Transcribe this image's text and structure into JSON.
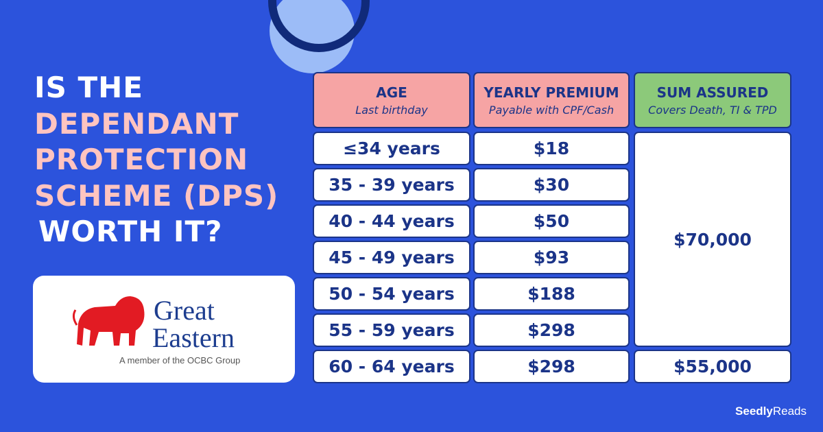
{
  "title": {
    "lines": [
      "IS THE",
      "DEPENDANT",
      "PROTECTION",
      "SCHEME (DPS)",
      "WORTH IT?"
    ]
  },
  "logo": {
    "name_lines": [
      "Great",
      "Eastern"
    ],
    "tagline": "A member of the OCBC Group"
  },
  "table": {
    "headers": [
      {
        "title": "AGE",
        "subtitle": "Last birthday"
      },
      {
        "title": "YEARLY PREMIUM",
        "subtitle": "Payable with CPF/Cash"
      },
      {
        "title": "SUM ASSURED",
        "subtitle": "Covers Death, TI & TPD"
      }
    ],
    "rows": [
      [
        "≤34 years",
        "$18"
      ],
      [
        "35 - 39 years",
        "$30"
      ],
      [
        "40 - 44 years",
        "$50"
      ],
      [
        "45 - 49 years",
        "$93"
      ],
      [
        "50 - 54 years",
        "$188"
      ],
      [
        "55 - 59 years",
        "$298"
      ],
      [
        "60 - 64 years",
        "$298"
      ]
    ],
    "sum_assured": [
      "$70,000",
      "$55,000"
    ]
  },
  "brand": {
    "name": "Seedly",
    "suffix": "Reads"
  }
}
